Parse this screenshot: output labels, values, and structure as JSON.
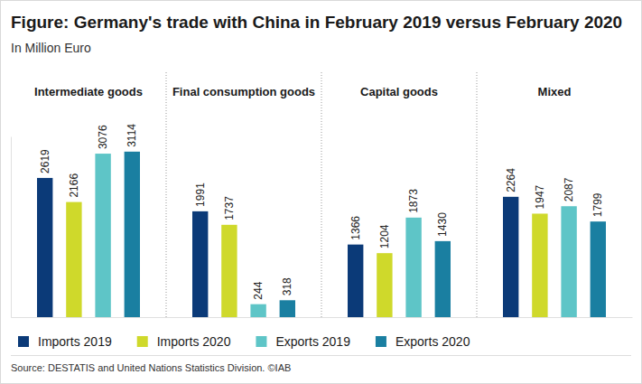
{
  "chart_data": {
    "type": "bar",
    "title": "Figure: Germany's trade with China in February 2019 versus February 2020",
    "subtitle": "In Million Euro",
    "source": "Source: DESTATIS and United Nations Statistics Division. ©IAB",
    "categories": [
      "Intermediate goods",
      "Final consumption goods",
      "Capital goods",
      "Mixed"
    ],
    "series": [
      {
        "name": "Imports 2019",
        "color": "#0b3a78",
        "values": [
          2619,
          1991,
          1366,
          2264
        ]
      },
      {
        "name": "Imports 2020",
        "color": "#cfd92b",
        "values": [
          2166,
          1737,
          1204,
          1947
        ]
      },
      {
        "name": "Exports 2019",
        "color": "#5ec5c7",
        "values": [
          3076,
          244,
          1873,
          2087
        ]
      },
      {
        "name": "Exports 2020",
        "color": "#1a7fa1",
        "values": [
          3114,
          318,
          1430,
          1799
        ]
      }
    ],
    "ylim": [
      0,
      3400
    ],
    "tick_labels": false,
    "data_labels": true,
    "legend": "bottom"
  }
}
